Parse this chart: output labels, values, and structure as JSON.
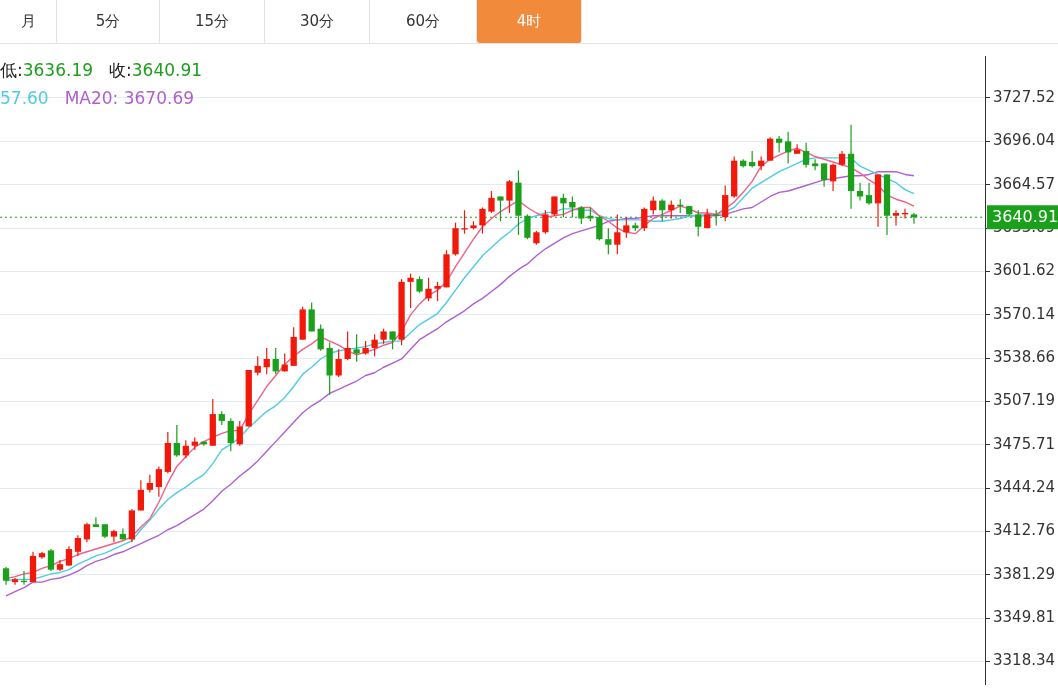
{
  "chart_data": {
    "type": "candlestick",
    "categories": [
      null,
      null,
      null,
      null,
      null,
      null,
      null,
      null,
      null,
      null,
      null,
      null,
      null,
      null,
      null,
      null,
      null,
      null,
      null,
      null,
      null,
      null,
      null,
      null,
      null,
      null,
      null,
      null,
      null,
      null,
      null,
      null,
      null,
      null,
      null,
      null,
      null,
      null,
      null,
      null,
      null,
      null,
      null,
      null,
      null,
      null,
      null,
      null,
      null,
      null,
      null,
      null,
      null,
      null,
      null,
      null,
      null,
      null,
      null,
      null,
      null,
      null,
      null,
      null,
      null,
      null,
      null,
      null,
      null,
      null,
      null,
      null,
      null,
      null,
      null,
      null,
      null,
      null,
      null,
      null,
      null,
      null,
      null,
      null,
      null,
      null,
      null,
      null,
      null,
      null,
      null,
      null,
      null,
      null,
      null,
      null,
      null,
      null,
      null,
      null,
      null,
      null
    ],
    "ohlc": [
      [
        3386,
        3387,
        3374,
        3377
      ],
      [
        3376,
        3379,
        3374,
        3378
      ],
      [
        3377,
        3384,
        3374,
        3376
      ],
      [
        3376,
        3398,
        3376,
        3395
      ],
      [
        3394,
        3398,
        3393,
        3397
      ],
      [
        3399,
        3400,
        3384,
        3385
      ],
      [
        3385,
        3392,
        3384,
        3389
      ],
      [
        3388,
        3402,
        3388,
        3400
      ],
      [
        3398,
        3410,
        3395,
        3408
      ],
      [
        3407,
        3419,
        3405,
        3418
      ],
      [
        3418,
        3423,
        3416,
        3416
      ],
      [
        3418,
        3418,
        3408,
        3409
      ],
      [
        3409,
        3414,
        3405,
        3413
      ],
      [
        3411,
        3415,
        3407,
        3407
      ],
      [
        3407,
        3429,
        3405,
        3428
      ],
      [
        3428,
        3450,
        3428,
        3443
      ],
      [
        3443,
        3454,
        3441,
        3448
      ],
      [
        3445,
        3460,
        3438,
        3458
      ],
      [
        3456,
        3485,
        3455,
        3477
      ],
      [
        3477,
        3490,
        3467,
        3468
      ],
      [
        3468,
        3479,
        3466,
        3475
      ],
      [
        3475,
        3481,
        3472,
        3478
      ],
      [
        3478,
        3478,
        3475,
        3476
      ],
      [
        3475,
        3509,
        3475,
        3498
      ],
      [
        3498,
        3500,
        3490,
        3493
      ],
      [
        3493,
        3495,
        3471,
        3477
      ],
      [
        3476,
        3493,
        3475,
        3489
      ],
      [
        3489,
        3530,
        3489,
        3530
      ],
      [
        3528,
        3540,
        3526,
        3533
      ],
      [
        3532,
        3546,
        3527,
        3538
      ],
      [
        3538,
        3546,
        3527,
        3529
      ],
      [
        3529,
        3542,
        3529,
        3534
      ],
      [
        3533,
        3561,
        3533,
        3554
      ],
      [
        3552,
        3576,
        3552,
        3574
      ],
      [
        3574,
        3579,
        3558,
        3558
      ],
      [
        3560,
        3563,
        3544,
        3545
      ],
      [
        3546,
        3550,
        3512,
        3526
      ],
      [
        3526,
        3545,
        3525,
        3538
      ],
      [
        3538,
        3558,
        3537,
        3546
      ],
      [
        3545,
        3556,
        3536,
        3542
      ],
      [
        3542,
        3551,
        3541,
        3546
      ],
      [
        3546,
        3556,
        3540,
        3552
      ],
      [
        3552,
        3560,
        3549,
        3558
      ],
      [
        3558,
        3558,
        3545,
        3552
      ],
      [
        3552,
        3596,
        3548,
        3594
      ],
      [
        3594,
        3600,
        3575,
        3597
      ],
      [
        3596,
        3598,
        3586,
        3587
      ],
      [
        3582,
        3597,
        3580,
        3589
      ],
      [
        3589,
        3594,
        3580,
        3591
      ],
      [
        3590,
        3617,
        3590,
        3614
      ],
      [
        3614,
        3637,
        3613,
        3633
      ],
      [
        3632,
        3646,
        3629,
        3633
      ],
      [
        3633,
        3638,
        3632,
        3635
      ],
      [
        3635,
        3648,
        3629,
        3647
      ],
      [
        3645,
        3660,
        3644,
        3655
      ],
      [
        3656,
        3656,
        3638,
        3653
      ],
      [
        3653,
        3668,
        3644,
        3667
      ],
      [
        3666,
        3675,
        3628,
        3642
      ],
      [
        3642,
        3643,
        3625,
        3626
      ],
      [
        3622,
        3631,
        3621,
        3630
      ],
      [
        3630,
        3646,
        3629,
        3643
      ],
      [
        3643,
        3656,
        3642,
        3656
      ],
      [
        3655,
        3658,
        3641,
        3651
      ],
      [
        3652,
        3656,
        3641,
        3648
      ],
      [
        3648,
        3649,
        3636,
        3640
      ],
      [
        3642,
        3648,
        3638,
        3640
      ],
      [
        3641,
        3642,
        3624,
        3625
      ],
      [
        3625,
        3633,
        3614,
        3621
      ],
      [
        3621,
        3643,
        3614,
        3630
      ],
      [
        3630,
        3641,
        3626,
        3635
      ],
      [
        3635,
        3637,
        3631,
        3633
      ],
      [
        3633,
        3648,
        3631,
        3647
      ],
      [
        3646,
        3656,
        3643,
        3653
      ],
      [
        3653,
        3654,
        3638,
        3646
      ],
      [
        3646,
        3653,
        3640,
        3650
      ],
      [
        3650,
        3654,
        3644,
        3649
      ],
      [
        3649,
        3649,
        3642,
        3643
      ],
      [
        3643,
        3646,
        3627,
        3634
      ],
      [
        3633,
        3647,
        3633,
        3643
      ],
      [
        3643,
        3646,
        3635,
        3642
      ],
      [
        3641,
        3664,
        3638,
        3657
      ],
      [
        3656,
        3685,
        3655,
        3682
      ],
      [
        3682,
        3683,
        3677,
        3678
      ],
      [
        3681,
        3689,
        3677,
        3678
      ],
      [
        3678,
        3685,
        3675,
        3682
      ],
      [
        3682,
        3699,
        3682,
        3698
      ],
      [
        3698,
        3700,
        3688,
        3695
      ],
      [
        3696,
        3703,
        3680,
        3688
      ],
      [
        3687,
        3694,
        3687,
        3690
      ],
      [
        3689,
        3695,
        3677,
        3679
      ],
      [
        3680,
        3683,
        3675,
        3678
      ],
      [
        3680,
        3680,
        3663,
        3668
      ],
      [
        3667,
        3680,
        3660,
        3679
      ],
      [
        3679,
        3689,
        3678,
        3687
      ],
      [
        3687,
        3708,
        3647,
        3660
      ],
      [
        3660,
        3666,
        3653,
        3656
      ],
      [
        3657,
        3666,
        3650,
        3651
      ],
      [
        3651,
        3672,
        3634,
        3672
      ],
      [
        3672,
        3672,
        3628,
        3642
      ],
      [
        3642,
        3646,
        3635,
        3644
      ],
      [
        3643,
        3647,
        3640,
        3644
      ],
      [
        3643,
        3644,
        3636.19,
        3640.91
      ]
    ],
    "colors": [
      "#1ba01b",
      "#f2190a",
      "#1ba01b",
      "#f2190a",
      "#f2190a",
      "#1ba01b",
      "#f2190a",
      "#f2190a",
      "#f2190a",
      "#f2190a",
      "#1ba01b",
      "#1ba01b",
      "#f2190a",
      "#1ba01b",
      "#f2190a",
      "#f2190a",
      "#f2190a",
      "#f2190a",
      "#f2190a",
      "#1ba01b",
      "#f2190a",
      "#f2190a",
      "#1ba01b",
      "#f2190a",
      "#1ba01b",
      "#1ba01b",
      "#f2190a",
      "#f2190a",
      "#f2190a",
      "#f2190a",
      "#1ba01b",
      "#f2190a",
      "#f2190a",
      "#f2190a",
      "#1ba01b",
      "#1ba01b",
      "#1ba01b",
      "#f2190a",
      "#f2190a",
      "#1ba01b",
      "#f2190a",
      "#f2190a",
      "#f2190a",
      "#1ba01b",
      "#f2190a",
      "#f2190a",
      "#1ba01b",
      "#f2190a",
      "#f2190a",
      "#f2190a",
      "#f2190a",
      "#f2190a",
      "#f2190a",
      "#f2190a",
      "#f2190a",
      "#1ba01b",
      "#f2190a",
      "#1ba01b",
      "#1ba01b",
      "#f2190a",
      "#f2190a",
      "#f2190a",
      "#1ba01b",
      "#1ba01b",
      "#1ba01b",
      "#1ba01b",
      "#1ba01b",
      "#1ba01b",
      "#f2190a",
      "#f2190a",
      "#1ba01b",
      "#f2190a",
      "#f2190a",
      "#1ba01b",
      "#f2190a",
      "#1ba01b",
      "#1ba01b",
      "#1ba01b",
      "#f2190a",
      "#1ba01b",
      "#f2190a",
      "#f2190a",
      "#1ba01b",
      "#1ba01b",
      "#f2190a",
      "#f2190a",
      "#1ba01b",
      "#1ba01b",
      "#f2190a",
      "#1ba01b",
      "#1ba01b",
      "#1ba01b",
      "#f2190a",
      "#f2190a",
      "#1ba01b",
      "#1ba01b",
      "#1ba01b",
      "#f2190a",
      "#1ba01b",
      "#f2190a",
      "#f2190a",
      "#1ba01b"
    ],
    "series": [
      {
        "type": "line",
        "color": "#f0608a",
        "values": [
          3378.5,
          3380,
          3382,
          3383,
          3386,
          3388,
          3391,
          3393,
          3396,
          3398,
          3400,
          3402,
          3404,
          3406,
          3409,
          3416,
          3422,
          3434,
          3448,
          3460,
          3467,
          3474,
          3478,
          3481,
          3484,
          3486,
          3486,
          3498,
          3508,
          3518,
          3526,
          3534,
          3540,
          3545,
          3549,
          3554,
          3551,
          3548,
          3544,
          3541,
          3543,
          3545,
          3548,
          3550,
          3558,
          3570,
          3578,
          3584,
          3588,
          3594,
          3605,
          3615,
          3625,
          3634,
          3640,
          3645,
          3649,
          3653,
          3648,
          3644,
          3641,
          3642,
          3643,
          3646,
          3648,
          3648,
          3642,
          3638,
          3633,
          3630,
          3629,
          3635,
          3640,
          3643,
          3646,
          3649,
          3647,
          3644,
          3644,
          3643,
          3647,
          3652,
          3659,
          3667,
          3678,
          3683,
          3686,
          3689,
          3691,
          3688,
          3685,
          3683,
          3681,
          3679,
          3677,
          3673,
          3668,
          3664,
          3657,
          3654,
          3652,
          3649
        ]
      },
      {
        "type": "line",
        "color": "#4fcde0",
        "values": [
          3377,
          3378,
          3378,
          3378,
          3380,
          3382,
          3383,
          3385,
          3389,
          3392,
          3395,
          3397,
          3400,
          3403,
          3406,
          3414,
          3421,
          3429,
          3436,
          3441,
          3445,
          3450,
          3454,
          3462,
          3472,
          3476,
          3481,
          3488,
          3494,
          3500,
          3504,
          3510,
          3518,
          3527,
          3532,
          3538,
          3542,
          3544,
          3545,
          3546,
          3547,
          3549,
          3550,
          3551,
          3551,
          3557,
          3563,
          3567,
          3571,
          3579,
          3588,
          3597,
          3605,
          3613,
          3619,
          3625,
          3630,
          3636,
          3640,
          3642,
          3644,
          3645,
          3647,
          3647,
          3646,
          3646,
          3642,
          3640,
          3639,
          3639,
          3639,
          3639,
          3638,
          3638,
          3639,
          3640,
          3642,
          3642,
          3643,
          3643,
          3645,
          3648,
          3655,
          3662,
          3666,
          3670,
          3674,
          3677,
          3680,
          3683,
          3684,
          3684,
          3684,
          3684,
          3684,
          3678,
          3675,
          3672,
          3669,
          3666,
          3661,
          3658
        ]
      },
      {
        "type": "line",
        "color": "#b05fd0",
        "values": [
          3366,
          3369,
          3372,
          3376,
          3376,
          3378,
          3379,
          3381,
          3384,
          3388,
          3391,
          3393,
          3396,
          3398,
          3401,
          3404,
          3407,
          3410,
          3414,
          3417,
          3421,
          3425,
          3429,
          3435,
          3442,
          3447,
          3453,
          3458,
          3464,
          3471,
          3478,
          3485,
          3492,
          3499,
          3504,
          3508,
          3513,
          3516,
          3519,
          3522,
          3526,
          3528,
          3532,
          3535,
          3538,
          3545,
          3552,
          3556,
          3560,
          3565,
          3569,
          3573,
          3578,
          3582,
          3587,
          3592,
          3598,
          3603,
          3607,
          3613,
          3618,
          3622,
          3626,
          3629,
          3631,
          3633,
          3635,
          3638,
          3639,
          3640,
          3640,
          3641,
          3642,
          3642,
          3642,
          3642,
          3642,
          3642,
          3642,
          3642,
          3643,
          3645,
          3647,
          3648,
          3652,
          3656,
          3659,
          3660,
          3662,
          3664,
          3666,
          3668,
          3669,
          3670,
          3671,
          3671,
          3672,
          3674,
          3674,
          3674,
          3672,
          3671
        ]
      }
    ],
    "ylim": [
      3302,
      3758
    ],
    "yticks": [
      3318.34,
      3349.81,
      3381.29,
      3412.76,
      3444.24,
      3475.71,
      3507.19,
      3538.66,
      3570.14,
      3601.62,
      3633.09,
      3664.57,
      3696.04,
      3727.52
    ],
    "grid": "y",
    "tick_labels": "y",
    "ref_lines": [
      {
        "axis": "y",
        "value": 3640.91,
        "label": "3640.91",
        "color": "#1ba01b",
        "line_style": "dotted"
      }
    ],
    "annotations": [
      "月",
      "5分",
      "15分",
      "30分",
      "60分",
      "4时",
      "低:3636.19",
      "收:3640.91",
      "57.60",
      "MA20: 3670.69"
    ]
  }
}
